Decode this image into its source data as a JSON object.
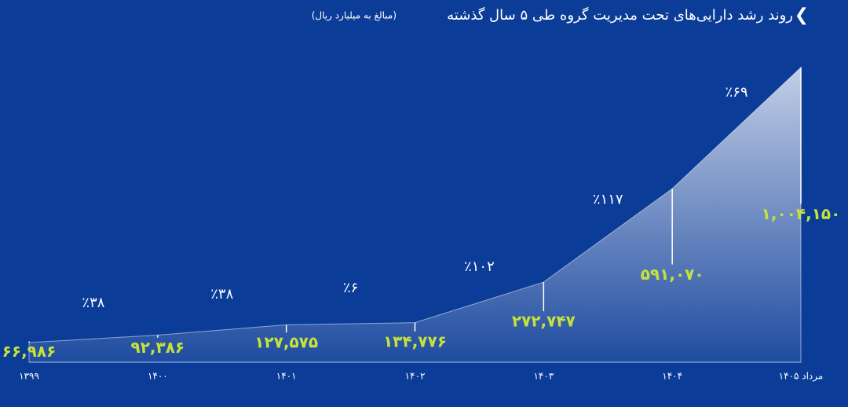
{
  "chart_data": {
    "type": "area",
    "title": "روند رشد دارایی‌های تحت مدیریت گروه طی ۵ سال گذشته",
    "subtitle": "(مبالغ به میلیارد ریال)",
    "categories": [
      "۱۳۹۹",
      "۱۴۰۰",
      "۱۴۰۱",
      "۱۴۰۲",
      "۱۴۰۳",
      "۱۴۰۴",
      "مرداد ۱۴۰۵"
    ],
    "values": [
      66986,
      92386,
      127575,
      134776,
      272747,
      591070,
      1004150
    ],
    "value_labels": [
      "۶۶,۹۸۶",
      "۹۲,۳۸۶",
      "۱۲۷,۵۷۵",
      "۱۳۴,۷۷۶",
      "۲۷۲,۷۴۷",
      "۵۹۱,۰۷۰",
      "۱,۰۰۴,۱۵۰"
    ],
    "growth": [
      {
        "value": 38,
        "label": "٪۳۸"
      },
      {
        "value": 38,
        "label": "٪۳۸"
      },
      {
        "value": 6,
        "label": "٪۶"
      },
      {
        "value": 102,
        "label": "٪۱۰۲"
      },
      {
        "value": 117,
        "label": "٪۱۱۷"
      },
      {
        "value": 69,
        "label": "٪۶۹"
      }
    ],
    "ylim": [
      0,
      1100000
    ],
    "color": "#ffffff",
    "label_color": "#c6e23a"
  }
}
